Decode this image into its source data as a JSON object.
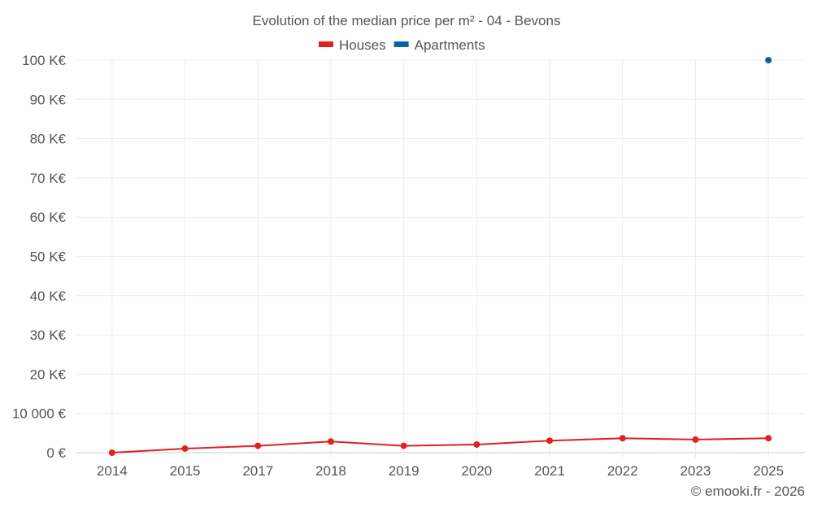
{
  "chart_data": {
    "type": "line",
    "title": "Evolution of the median price per m² - 04 - Bevons",
    "categories": [
      "2014",
      "2015",
      "2017",
      "2018",
      "2019",
      "2020",
      "2021",
      "2022",
      "2023",
      "2025"
    ],
    "series": [
      {
        "name": "Houses",
        "color": "#dd2222",
        "values": [
          0,
          1040,
          1740,
          2850,
          1740,
          2080,
          3060,
          3680,
          3330,
          3680
        ]
      },
      {
        "name": "Apartments",
        "color": "#0b62a4",
        "values": [
          null,
          null,
          null,
          null,
          null,
          null,
          null,
          null,
          null,
          100000
        ]
      }
    ],
    "ylim": [
      0,
      100000
    ],
    "yticks": [
      0,
      10000,
      20000,
      30000,
      40000,
      50000,
      60000,
      70000,
      80000,
      90000,
      100000
    ],
    "ytick_labels": [
      "0 €",
      "10 000 €",
      "20 K€",
      "30 K€",
      "40 K€",
      "50 K€",
      "60 K€",
      "70 K€",
      "80 K€",
      "90 K€",
      "100 K€"
    ],
    "xlabel": "",
    "ylabel": "",
    "grid": true,
    "legend": "top-center"
  },
  "credit": "© emooki.fr - 2026"
}
